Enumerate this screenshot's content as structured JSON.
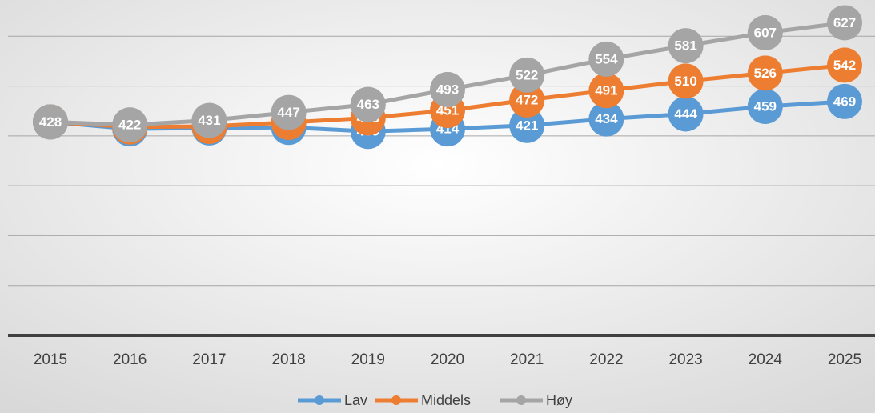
{
  "chart_data": {
    "type": "line",
    "categories": [
      "2015",
      "2016",
      "2017",
      "2018",
      "2019",
      "2020",
      "2021",
      "2022",
      "2023",
      "2024",
      "2025"
    ],
    "series": [
      {
        "name": "Lav",
        "color": "#5b9bd5",
        "values": [
          428,
          414,
          416,
          417,
          409,
          414,
          421,
          434,
          444,
          459,
          469
        ]
      },
      {
        "name": "Middels",
        "color": "#ed7d31",
        "values": [
          428,
          418,
          419,
          427,
          436,
          451,
          472,
          491,
          510,
          526,
          542
        ]
      },
      {
        "name": "Høy",
        "color": "#a5a5a5",
        "values": [
          428,
          422,
          431,
          447,
          463,
          493,
          522,
          554,
          581,
          607,
          627
        ]
      }
    ],
    "ylim": [
      0,
      700
    ],
    "yticks": [
      0,
      100,
      200,
      300,
      400,
      500,
      600
    ],
    "grid": true,
    "legend": "bottom"
  }
}
